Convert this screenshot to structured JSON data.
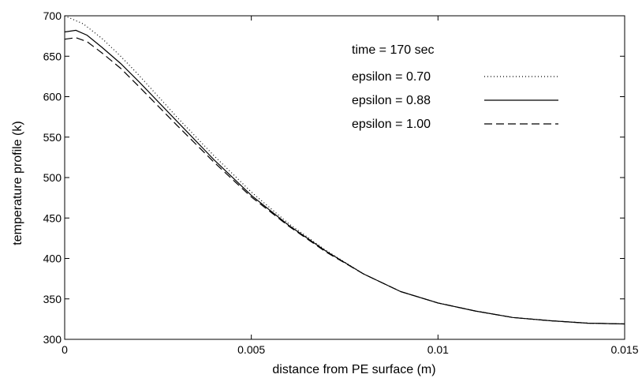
{
  "chart_data": {
    "type": "line",
    "xlabel": "distance from PE surface (m)",
    "ylabel": "temperature profile (k)",
    "xlim": [
      0,
      0.015
    ],
    "ylim": [
      300,
      700
    ],
    "x_ticks": [
      "0",
      "0.005",
      "0.01",
      "0.015"
    ],
    "x_tick_values": [
      0,
      0.005,
      0.01,
      0.015
    ],
    "y_ticks": [
      "300",
      "350",
      "400",
      "450",
      "500",
      "550",
      "600",
      "650",
      "700"
    ],
    "y_tick_values": [
      300,
      350,
      400,
      450,
      500,
      550,
      600,
      650,
      700
    ],
    "grid": false,
    "legend_placement": "top-right",
    "annotation": "time = 170 sec",
    "series": [
      {
        "name": "epsilon = 0.70",
        "style": "dotted",
        "x": [
          0,
          0.0005,
          0.001,
          0.0015,
          0.002,
          0.003,
          0.004,
          0.005,
          0.006,
          0.007,
          0.008,
          0.009,
          0.01,
          0.011,
          0.012,
          0.013,
          0.014,
          0.015
        ],
        "y": [
          700,
          690,
          672,
          650,
          626,
          575,
          527,
          482,
          443,
          410,
          381,
          359,
          345,
          335,
          327,
          323,
          320,
          319
        ]
      },
      {
        "name": "epsilon = 0.88",
        "style": "solid",
        "x": [
          0,
          0.0003,
          0.0006,
          0.001,
          0.0015,
          0.002,
          0.003,
          0.004,
          0.005,
          0.006,
          0.007,
          0.008,
          0.009,
          0.01,
          0.011,
          0.012,
          0.013,
          0.014,
          0.015
        ],
        "y": [
          680,
          682,
          676,
          661,
          641,
          618,
          570,
          522,
          478,
          441,
          409,
          381,
          359,
          345,
          335,
          327,
          323,
          320,
          319
        ]
      },
      {
        "name": "epsilon = 1.00",
        "style": "dashed",
        "x": [
          0,
          0.0003,
          0.0006,
          0.001,
          0.0015,
          0.002,
          0.003,
          0.004,
          0.005,
          0.006,
          0.007,
          0.008,
          0.009,
          0.01,
          0.011,
          0.012,
          0.013,
          0.014,
          0.015
        ],
        "y": [
          671,
          673,
          668,
          654,
          635,
          612,
          565,
          519,
          476,
          440,
          408,
          381,
          359,
          345,
          335,
          327,
          323,
          320,
          319
        ]
      }
    ]
  }
}
